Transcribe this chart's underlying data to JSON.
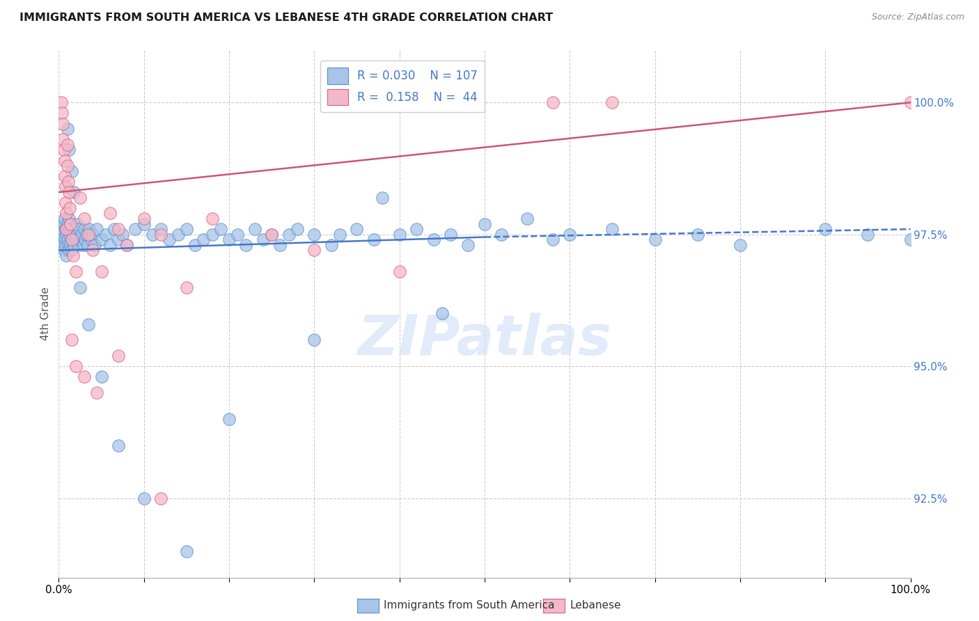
{
  "title": "IMMIGRANTS FROM SOUTH AMERICA VS LEBANESE 4TH GRADE CORRELATION CHART",
  "source": "Source: ZipAtlas.com",
  "ylabel": "4th Grade",
  "yticks": [
    92.5,
    95.0,
    97.5,
    100.0
  ],
  "ytick_labels": [
    "92.5%",
    "95.0%",
    "97.5%",
    "100.0%"
  ],
  "xtick_positions": [
    0,
    10,
    20,
    30,
    40,
    50,
    60,
    70,
    80,
    90,
    100
  ],
  "xtick_labels_show": [
    "0.0%",
    "",
    "",
    "",
    "",
    "",
    "",
    "",
    "",
    "",
    "100.0%"
  ],
  "xlim": [
    0.0,
    100.0
  ],
  "ylim": [
    91.0,
    101.0
  ],
  "blue_R": "0.030",
  "blue_N": "107",
  "pink_R": "0.158",
  "pink_N": "44",
  "blue_fill_color": "#a8c4e8",
  "pink_fill_color": "#f5b8c8",
  "blue_edge_color": "#5590cc",
  "pink_edge_color": "#d86080",
  "blue_line_color": "#4477cc",
  "pink_line_color": "#cc5577",
  "grid_color": "#cccccc",
  "legend_label_blue": "Immigrants from South America",
  "legend_label_pink": "Lebanese",
  "watermark": "ZIPatlas",
  "blue_scatter_x": [
    0.4,
    0.5,
    0.5,
    0.6,
    0.6,
    0.7,
    0.7,
    0.8,
    0.8,
    0.9,
    0.9,
    1.0,
    1.0,
    1.1,
    1.1,
    1.2,
    1.2,
    1.3,
    1.3,
    1.4,
    1.4,
    1.5,
    1.5,
    1.6,
    1.7,
    1.8,
    1.9,
    2.0,
    2.1,
    2.2,
    2.3,
    2.4,
    2.5,
    2.7,
    2.9,
    3.0,
    3.1,
    3.2,
    3.4,
    3.6,
    3.8,
    4.0,
    4.2,
    4.5,
    5.0,
    5.5,
    6.0,
    6.5,
    7.0,
    7.5,
    8.0,
    9.0,
    10.0,
    11.0,
    12.0,
    13.0,
    14.0,
    15.0,
    16.0,
    17.0,
    18.0,
    19.0,
    20.0,
    21.0,
    22.0,
    23.0,
    24.0,
    25.0,
    26.0,
    27.0,
    28.0,
    30.0,
    32.0,
    33.0,
    35.0,
    37.0,
    38.0,
    40.0,
    42.0,
    44.0,
    46.0,
    48.0,
    50.0,
    52.0,
    55.0,
    58.0,
    60.0,
    65.0,
    70.0,
    75.0,
    80.0,
    90.0,
    95.0,
    100.0,
    1.0,
    1.2,
    1.5,
    1.8,
    2.5,
    3.5,
    5.0,
    7.0,
    10.0,
    15.0,
    20.0,
    30.0,
    45.0
  ],
  "blue_scatter_y": [
    97.5,
    97.6,
    97.3,
    97.7,
    97.2,
    97.8,
    97.4,
    97.6,
    97.3,
    97.5,
    97.1,
    97.7,
    97.4,
    97.6,
    97.3,
    97.8,
    97.2,
    97.5,
    97.6,
    97.3,
    97.7,
    97.4,
    97.2,
    97.6,
    97.5,
    97.3,
    97.6,
    97.4,
    97.5,
    97.7,
    97.3,
    97.6,
    97.4,
    97.5,
    97.3,
    97.6,
    97.4,
    97.5,
    97.3,
    97.6,
    97.4,
    97.5,
    97.3,
    97.6,
    97.4,
    97.5,
    97.3,
    97.6,
    97.4,
    97.5,
    97.3,
    97.6,
    97.7,
    97.5,
    97.6,
    97.4,
    97.5,
    97.6,
    97.3,
    97.4,
    97.5,
    97.6,
    97.4,
    97.5,
    97.3,
    97.6,
    97.4,
    97.5,
    97.3,
    97.5,
    97.6,
    97.5,
    97.3,
    97.5,
    97.6,
    97.4,
    98.2,
    97.5,
    97.6,
    97.4,
    97.5,
    97.3,
    97.7,
    97.5,
    97.8,
    97.4,
    97.5,
    97.6,
    97.4,
    97.5,
    97.3,
    97.6,
    97.5,
    97.4,
    99.5,
    99.1,
    98.7,
    98.3,
    96.5,
    95.8,
    94.8,
    93.5,
    92.5,
    91.5,
    94.0,
    95.5,
    96.0
  ],
  "pink_scatter_x": [
    0.3,
    0.4,
    0.5,
    0.5,
    0.6,
    0.7,
    0.7,
    0.8,
    0.8,
    0.9,
    0.9,
    1.0,
    1.0,
    1.1,
    1.2,
    1.3,
    1.4,
    1.5,
    1.7,
    2.0,
    2.5,
    3.0,
    3.5,
    4.0,
    5.0,
    6.0,
    7.0,
    8.0,
    10.0,
    12.0,
    15.0,
    18.0,
    25.0,
    30.0,
    40.0,
    58.0,
    65.0,
    100.0,
    1.5,
    2.0,
    3.0,
    4.5,
    7.0,
    12.0
  ],
  "pink_scatter_y": [
    100.0,
    99.8,
    99.6,
    99.3,
    99.1,
    98.9,
    98.6,
    98.4,
    98.1,
    97.9,
    97.6,
    99.2,
    98.8,
    98.5,
    98.3,
    98.0,
    97.7,
    97.4,
    97.1,
    96.8,
    98.2,
    97.8,
    97.5,
    97.2,
    96.8,
    97.9,
    97.6,
    97.3,
    97.8,
    97.5,
    96.5,
    97.8,
    97.5,
    97.2,
    96.8,
    100.0,
    100.0,
    100.0,
    95.5,
    95.0,
    94.8,
    94.5,
    95.2,
    92.5
  ],
  "blue_trend_x0": 0.0,
  "blue_trend_x1": 50.0,
  "blue_trend_x2": 100.0,
  "blue_trend_y0": 97.2,
  "blue_trend_y1": 97.45,
  "blue_trend_y2": 97.6,
  "pink_trend_x0": 0.0,
  "pink_trend_x1": 100.0,
  "pink_trend_y0": 98.3,
  "pink_trend_y1": 100.0
}
